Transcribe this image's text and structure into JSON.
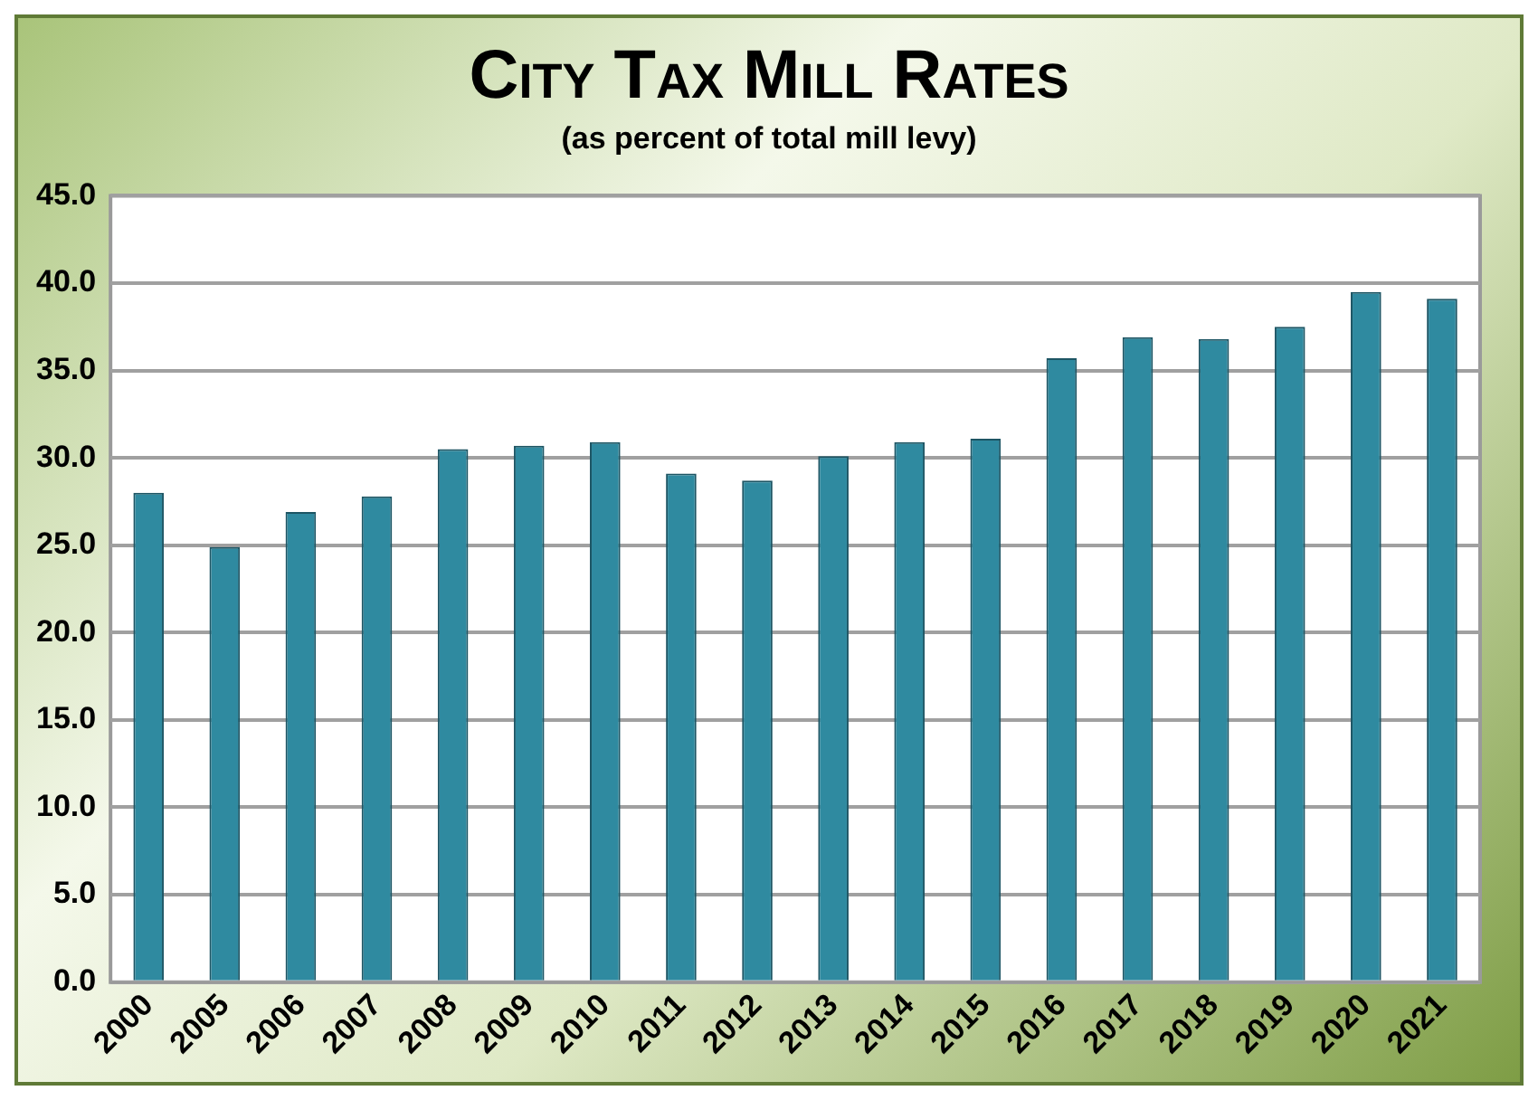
{
  "chart_data": {
    "type": "bar",
    "title": "City Tax Mill Rates",
    "subtitle": "(as percent of total mill levy)",
    "categories": [
      "2000",
      "2005",
      "2006",
      "2007",
      "2008",
      "2009",
      "2010",
      "2011",
      "2012",
      "2013",
      "2014",
      "2015",
      "2016",
      "2017",
      "2018",
      "2019",
      "2020",
      "2021"
    ],
    "values": [
      28.0,
      24.9,
      26.9,
      27.8,
      30.5,
      30.7,
      30.9,
      29.1,
      28.7,
      30.1,
      30.9,
      31.1,
      35.7,
      36.9,
      36.8,
      37.5,
      39.5,
      39.1
    ],
    "color": "#2f8aa0",
    "ylim": [
      0,
      45
    ],
    "yticks": [
      {
        "value": 0,
        "label": "0.0"
      },
      {
        "value": 5,
        "label": "5.0"
      },
      {
        "value": 10,
        "label": "10.0"
      },
      {
        "value": 15,
        "label": "15.0"
      },
      {
        "value": 20,
        "label": "20.0"
      },
      {
        "value": 25,
        "label": "25.0"
      },
      {
        "value": 30,
        "label": "30.0"
      },
      {
        "value": 35,
        "label": "35.0"
      },
      {
        "value": 40,
        "label": "40.0"
      },
      {
        "value": 45,
        "label": "45.0"
      }
    ],
    "grid": "y"
  }
}
